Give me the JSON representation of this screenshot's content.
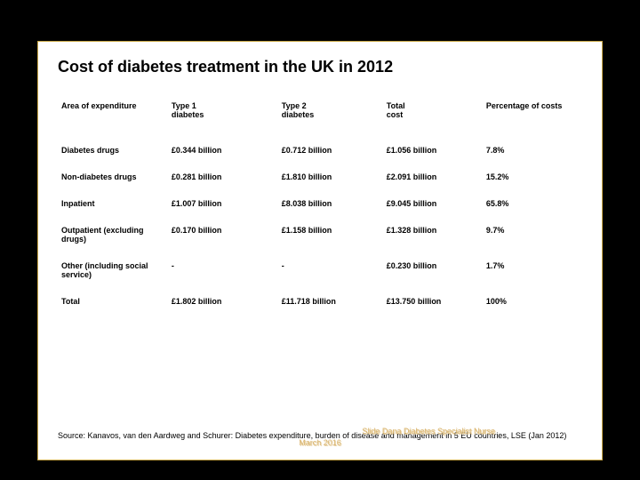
{
  "title": "Cost of diabetes treatment in the UK in 2012",
  "table": {
    "headers": [
      "Area of expenditure",
      "Type 1\ndiabetes",
      "Type 2\ndiabetes",
      "Total\ncost",
      "Percentage of costs"
    ],
    "rows": [
      [
        "Diabetes drugs",
        "£0.344 billion",
        "£0.712 billion",
        "£1.056 billion",
        "7.8%"
      ],
      [
        "Non-diabetes drugs",
        "£0.281 billion",
        "£1.810 billion",
        "£2.091 billion",
        "15.2%"
      ],
      [
        "Inpatient",
        "£1.007 billion",
        "£8.038 billion",
        "£9.045 billion",
        "65.8%"
      ],
      [
        "Outpatient (excluding drugs)",
        "£0.170 billion",
        "£1.158 billion",
        "£1.328 billion",
        "9.7%"
      ],
      [
        "Other (including social service)",
        "-",
        "-",
        "£0.230 billion",
        "1.7%"
      ],
      [
        "Total",
        "£1.802 billion",
        "£11.718 billion",
        "£13.750 billion",
        "100%"
      ]
    ],
    "col_widths": [
      "21%",
      "21%",
      "20%",
      "19%",
      "19%"
    ],
    "header_fontsize": 9,
    "cell_fontsize": 9,
    "font_weight": "bold",
    "text_color": "#000000"
  },
  "source": "Source: Kanavos, van den Aardweg and Schurer: Diabetes expenditure, burden of disease and management in 5 EU countries, LSE (Jan 2012)",
  "watermark": {
    "line1": "Slide Dana Diabetes Specialist Nurse",
    "line2": "March 2016",
    "color": "#d9b36b"
  },
  "colors": {
    "slide_bg": "#ffffff",
    "page_bg": "#000000",
    "border": "#c9a847"
  }
}
